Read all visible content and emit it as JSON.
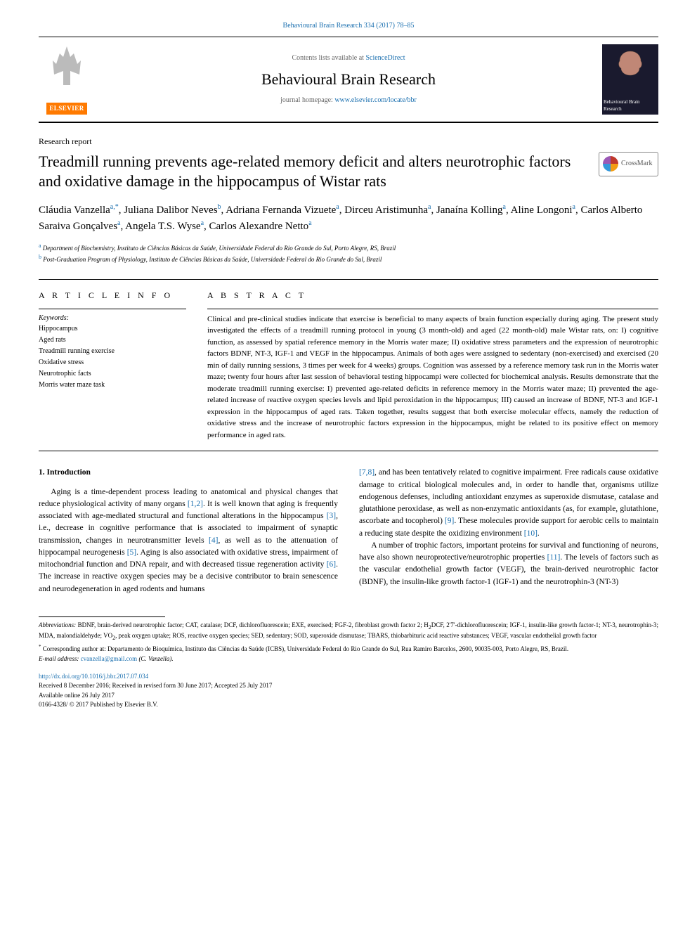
{
  "citation": "Behavioural Brain Research 334 (2017) 78–85",
  "contents_prefix": "Contents lists available at ",
  "contents_link": "ScienceDirect",
  "journal_name": "Behavioural Brain Research",
  "homepage_prefix": "journal homepage: ",
  "homepage_url": "www.elsevier.com/locate/bbr",
  "elsevier_text": "ELSEVIER",
  "cover_text_top": "Behavioural Brain Research",
  "article_type": "Research report",
  "title": "Treadmill running prevents age-related memory deficit and alters neurotrophic factors and oxidative damage in the hippocampus of Wistar rats",
  "crossmark_label": "CrossMark",
  "authors_html": "Cláudia Vanzella<sup class=\"sup\">a,*</sup>, Juliana Dalibor Neves<sup class=\"sup\">b</sup>, Adriana Fernanda Vizuete<sup class=\"sup\">a</sup>, Dirceu Aristimunha<sup class=\"sup\">a</sup>, Janaína Kolling<sup class=\"sup\">a</sup>, Aline Longoni<sup class=\"sup\">a</sup>, Carlos Alberto Saraiva Gonçalves<sup class=\"sup\">a</sup>, Angela T.S. Wyse<sup class=\"sup\">a</sup>, Carlos Alexandre Netto<sup class=\"sup\">a</sup>",
  "affiliations": [
    {
      "label": "a",
      "text": "Department of Biochemistry, Instituto de Ciências Básicas da Saúde, Universidade Federal do Rio Grande do Sul, Porto Alegre, RS, Brazil"
    },
    {
      "label": "b",
      "text": "Post-Graduation Program of Physiology, Instituto de Ciências Básicas da Saúde, Universidade Federal do Rio Grande do Sul, Brazil"
    }
  ],
  "article_info_heading": "A R T I C L E  I N F O",
  "keywords_label": "Keywords:",
  "keywords": [
    "Hippocampus",
    "Aged rats",
    "Treadmill running exercise",
    "Oxidative stress",
    "Neurotrophic facts",
    "Morris water maze task"
  ],
  "abstract_heading": "A B S T R A C T",
  "abstract_text": "Clinical and pre-clinical studies indicate that exercise is beneficial to many aspects of brain function especially during aging. The present study investigated the effects of a treadmill running protocol in young (3 month-old) and aged (22 month-old) male Wistar rats, on: I) cognitive function, as assessed by spatial reference memory in the Morris water maze; II) oxidative stress parameters and the expression of neurotrophic factors BDNF, NT-3, IGF-1 and VEGF in the hippocampus. Animals of both ages were assigned to sedentary (non-exercised) and exercised (20 min of daily running sessions, 3 times per week for 4 weeks) groups. Cognition was assessed by a reference memory task run in the Morris water maze; twenty four hours after last session of behavioral testing hippocampi were collected for biochemical analysis. Results demonstrate that the moderate treadmill running exercise: I) prevented age-related deficits in reference memory in the Morris water maze; II) prevented the age-related increase of reactive oxygen species levels and lipid peroxidation in the hippocampus; III) caused an increase of BDNF, NT-3 and IGF-1 expression in the hippocampus of aged rats. Taken together, results suggest that both exercise molecular effects, namely the reduction of oxidative stress and the increase of neurotrophic factors expression in the hippocampus, might be related to its positive effect on memory performance in aged rats.",
  "introduction_heading": "1. Introduction",
  "col1_html": "Aging is a time-dependent process leading to anatomical and physical changes that reduce physiological activity of many organs <span class=\"ref\">[1,2]</span>. It is well known that aging is frequently associated with age-mediated structural and functional alterations in the hippocampus <span class=\"ref\">[3]</span>, i.e., decrease in cognitive performance that is associated to impairment of synaptic transmission, changes in neurotransmitter levels <span class=\"ref\">[4]</span>, as well as to the attenuation of hippocampal neurogenesis <span class=\"ref\">[5]</span>. Aging is also associated with oxidative stress, impairment of mitochondrial function and DNA repair, and with decreased tissue regeneration activity <span class=\"ref\">[6]</span>. The increase in reactive oxygen species may be a decisive contributor to brain senescence and neurodegeneration in aged rodents and humans",
  "col2_p1_html": "<span class=\"ref\">[7,8]</span>, and has been tentatively related to cognitive impairment. Free radicals cause oxidative damage to critical biological molecules and, in order to handle that, organisms utilize endogenous defenses, including antioxidant enzymes as superoxide dismutase, catalase and glutathione peroxidase, as well as non-enzymatic antioxidants (as, for example, glutathione, ascorbate and tocopherol) <span class=\"ref\">[9]</span>. These molecules provide support for aerobic cells to maintain a reducing state despite the oxidizing environment <span class=\"ref\">[10]</span>.",
  "col2_p2_html": "A number of trophic factors, important proteins for survival and functioning of neurons, have also shown neuroprotective/neurotrophic properties <span class=\"ref\">[11]</span>. The levels of factors such as the vascular endothelial growth factor (VEGF), the brain-derived neurotrophic factor (BDNF), the insulin-like growth factor-1 (IGF-1) and the neurotrophin-3 (NT-3)",
  "abbreviations_html": "<i>Abbreviations:</i> BDNF, brain-derived neurotrophic factor; CAT, catalase; DCF, dichlorofluorescein; EXE, exercised; FGF-2, fibroblast growth factor 2; H<span class=\"sub\">2</span>DCF, 2'7'-dichlorofluorescein; IGF-1, insulin-like growth factor-1; NT-3, neurotrophin-3; MDA, malondialdehyde; VO<span class=\"sub\">2</span>, peak oxygen uptake; ROS, reactive oxygen species; SED, sedentary; SOD, superoxide dismutase; TBARS, thiobarbituric acid reactive substances; VEGF, vascular endothelial growth factor",
  "corresponding_html": "<sup class=\"sup\">*</sup> Corresponding author at: Departamento de Bioquímica, Instituto das Ciências da Saúde (ICBS), Universidade Federal do Rio Grande do Sul, Rua Ramiro Barcelos, 2600, 90035-003, Porto Alegre, RS, Brazil.",
  "email_label": "E-mail address: ",
  "email_address": "cvanzella@gmail.com",
  "email_suffix": " (C. Vanzella).",
  "doi": "http://dx.doi.org/10.1016/j.bbr.2017.07.034",
  "received": "Received 8 December 2016; Received in revised form 30 June 2017; Accepted 25 July 2017",
  "available": "Available online 26 July 2017",
  "copyright": "0166-4328/ © 2017 Published by Elsevier B.V."
}
